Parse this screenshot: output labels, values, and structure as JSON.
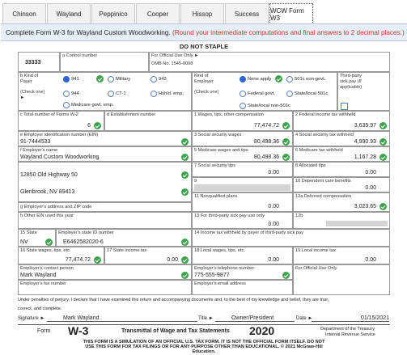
{
  "tabs": [
    "Chinson",
    "Wayland",
    "Peppinico",
    "Cooper",
    "Hissop",
    "Success",
    "WCW Form W3"
  ],
  "banner": {
    "text": "Complete Form W-3 for Wayland Custom Woodworking. ",
    "note": "(Round your intermediate computations and final answers to 2 decimal places.)"
  },
  "form": {
    "title": "DO NOT STAPLE",
    "control_code": "33333",
    "a_label": "a Control number",
    "official_use": "For Official Use Only ►",
    "omb": "OMB No. 1545-0008",
    "b_label": "b Kind of Payer",
    "check_one": "(Check one)",
    "payer_opts": [
      "941",
      "Military",
      "943",
      "944",
      "CT-1",
      "Hshld. emp.",
      "Medicare govt. emp."
    ],
    "kind_employer": "Kind of Employer",
    "employer_opts": [
      "None apply",
      "501c non-govt.",
      "State/local 501c",
      "Federal govt.",
      "State/local non-501c"
    ],
    "third_party": "Third-party sick pay (If applicable)",
    "c_label": "c Total number of Forms W-2",
    "c_value": "6",
    "d_label": "d Establishment number",
    "e_label": "e Employer identification number (EIN)",
    "e_value": "91-7444533",
    "f_label": "f Employer's name",
    "f_value": "Wayland Custom Woodworking",
    "addr1": "12850 Old Highway 50",
    "addr2": "Glenbrook, NV 89413",
    "g_label": "g Employer's address and ZIP code",
    "h_label": "h Other EIN used this year",
    "b1_label": "1 Wages, tips, other compensation",
    "b1_value": "77,474.72",
    "b2_label": "2 Federal income tax withheld",
    "b2_value": "3,635.97",
    "b3_label": "3 Social security wages",
    "b3_value": "80,498.36",
    "b4_label": "4 Social security tax withheld",
    "b4_value": "4,990.93",
    "b5_label": "5 Medicare wages and tips",
    "b5_value": "80,498.36",
    "b6_label": "6 Medicare tax withheld",
    "b6_value": "1,167.28",
    "b7_label": "7 Social security tips",
    "b7_value": "0.00",
    "b8_label": "8 Allocated tips",
    "b8_value": "0.00",
    "b9_label": "9",
    "b10_label": "10 Dependent care benefits",
    "b10_value": "0.00",
    "b11_label": "11 Nonqualified plans",
    "b11_value": "0.00",
    "b12a_label": "12a Deferred compensation",
    "b12a_value": "3,023.65",
    "b13_label": "13 For third-party sick pay use only",
    "b13_value": "0.00",
    "b12b_label": "12b",
    "b14_label": "14 Income tax withheld by payer of third-party sick pay",
    "b15_label": "15 State",
    "b15_value": "NV",
    "state_id_label": "Employer's state ID number",
    "state_id_value": "E6462582020-6",
    "b16_label": "16 State wages, tips, etc.",
    "b16_value": "77,474.72",
    "b17_label": "17 State income tax",
    "b17_value": "0.00",
    "b18_label": "18 Local wages, tips, etc.",
    "b18_value": "0.00",
    "b19_label": "19 Local income tax",
    "b19_value": "0.00",
    "contact_label": "Employer's contact person",
    "contact_value": "Mark Wayland",
    "phone_label": "Employer's telephone number",
    "phone_value": "775-555-9877",
    "official2": "For Official Use Only",
    "fax_label": "Employer's fax number",
    "email_label": "Employer's email address"
  },
  "footer": {
    "perjury": "Under penalties of perjury, I declare that I have examined this return and accompanying documents and, to the best of my knowledge and belief, they are true,",
    "perjury2": "correct, and complete.",
    "sig_label": "Signature ►",
    "sig_value": "Mark Wayland",
    "title_label": "Title ►",
    "title_value": "Owner/President",
    "date_label": "Date ►",
    "date_value": "01/15/2021",
    "form_word": "Form",
    "form_name": "W-3",
    "transmittal": "Transmittal of Wage and Tax Statements",
    "year": "2020",
    "dept1": "Department of the Treasury",
    "dept2": "Internal Revenue Service",
    "disclaimer1": "THIS FORM IS A SIMULATION OF AN OFFICIAL U.S. TAX FORM. IT IS NOT THE OFFICIAL FORM ITSELF. DO NOT",
    "disclaimer2": "USE THIS FORM FOR TAX FILINGS OR FOR ANY PURPOSE OTHER THAN EDUCATIONAL. © 2021 McGraw-Hill",
    "disclaimer3": "Education."
  }
}
